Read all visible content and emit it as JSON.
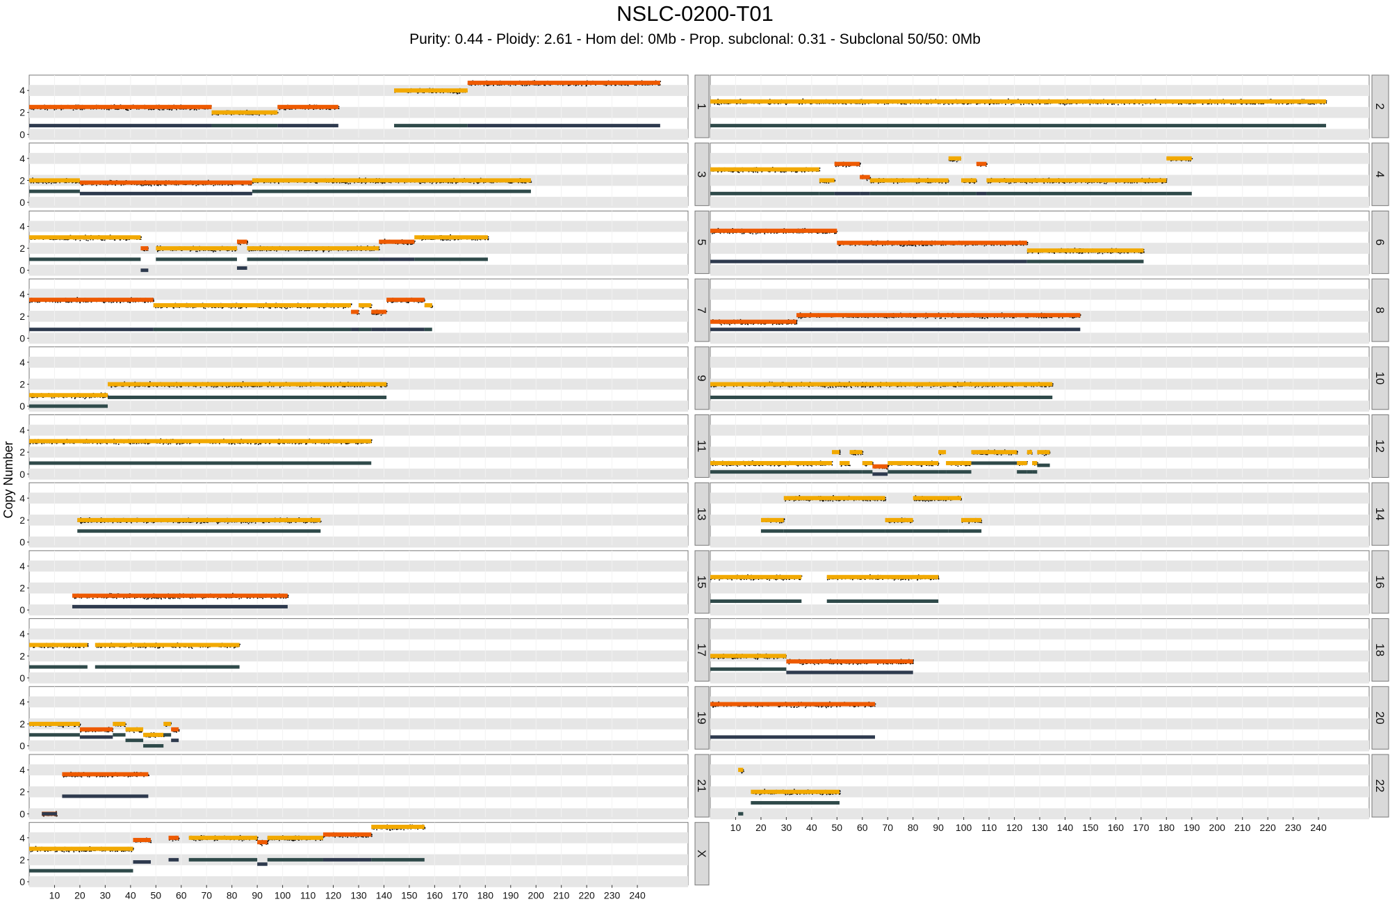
{
  "chart_data": {
    "type": "scatter",
    "title": "NSLC-0200-T01",
    "subtitle": "Purity: 0.44 - Ploidy: 2.61 - Hom del: 0Mb - Prop. subclonal: 0.31 - Subclonal 50/50: 0Mb",
    "ylabel": "Copy Number",
    "xlabel": "",
    "xlim": [
      0,
      260
    ],
    "ylim": [
      -0.3,
      5.4
    ],
    "x_ticks": [
      10,
      20,
      30,
      40,
      50,
      60,
      70,
      80,
      90,
      100,
      110,
      120,
      130,
      140,
      150,
      160,
      170,
      180,
      190,
      200,
      210,
      220,
      230,
      240
    ],
    "y_ticks": [
      0,
      2,
      4
    ],
    "grid": true,
    "colors": {
      "clonal": "#ee5a00",
      "subclonal": "#f2a900",
      "minor_clonal": "#2f4a4a",
      "minor_dark": "#2e3a4e",
      "points": "#000000",
      "strip": "#d9d9d9",
      "band": "#e6e6e6"
    },
    "panels": [
      {
        "chrom": "1",
        "col": 0,
        "row": 0,
        "length": 249,
        "segments": [
          {
            "start": 0,
            "end": 72,
            "total": 2.5,
            "minor": 0.8,
            "clonal": true
          },
          {
            "start": 72,
            "end": 98,
            "total": 2.0,
            "minor": 0.8,
            "clonal": false
          },
          {
            "start": 98,
            "end": 122,
            "total": 2.5,
            "minor": 0.8,
            "clonal": true
          },
          {
            "start": 144,
            "end": 173,
            "total": 4.0,
            "minor": 0.8,
            "clonal": false
          },
          {
            "start": 173,
            "end": 249,
            "total": 4.7,
            "minor": 0.8,
            "clonal": true
          }
        ]
      },
      {
        "chrom": "2",
        "col": 1,
        "row": 0,
        "length": 243,
        "segments": [
          {
            "start": 0,
            "end": 243,
            "total": 3.0,
            "minor": 0.8,
            "clonal": false
          }
        ]
      },
      {
        "chrom": "3",
        "col": 0,
        "row": 1,
        "length": 198,
        "segments": [
          {
            "start": 0,
            "end": 20,
            "total": 2.0,
            "minor": 1.0,
            "clonal": false
          },
          {
            "start": 20,
            "end": 88,
            "total": 1.8,
            "minor": 0.8,
            "clonal": true
          },
          {
            "start": 88,
            "end": 198,
            "total": 2.0,
            "minor": 1.0,
            "clonal": false
          }
        ]
      },
      {
        "chrom": "4",
        "col": 1,
        "row": 1,
        "length": 191,
        "segments": [
          {
            "start": 0,
            "end": 43,
            "total": 3.0,
            "minor": 0.8,
            "clonal": false
          },
          {
            "start": 43,
            "end": 49,
            "total": 2.0,
            "minor": 0.8,
            "clonal": false
          },
          {
            "start": 49,
            "end": 59,
            "total": 3.5,
            "minor": 0.8,
            "clonal": true
          },
          {
            "start": 59,
            "end": 63,
            "total": 2.3,
            "minor": 0.8,
            "clonal": true
          },
          {
            "start": 63,
            "end": 94,
            "total": 2.0,
            "minor": 0.8,
            "clonal": false
          },
          {
            "start": 94,
            "end": 99,
            "total": 4.0,
            "minor": 0.8,
            "clonal": false
          },
          {
            "start": 99,
            "end": 105,
            "total": 2.0,
            "minor": 0.8,
            "clonal": false
          },
          {
            "start": 105,
            "end": 109,
            "total": 3.5,
            "minor": 0.8,
            "clonal": true
          },
          {
            "start": 109,
            "end": 180,
            "total": 2.0,
            "minor": 0.8,
            "clonal": false
          },
          {
            "start": 180,
            "end": 190,
            "total": 4.0,
            "minor": 0.8,
            "clonal": false
          }
        ]
      },
      {
        "chrom": "5",
        "col": 0,
        "row": 2,
        "length": 181,
        "segments": [
          {
            "start": 0,
            "end": 44,
            "total": 3.0,
            "minor": 1.0,
            "clonal": false
          },
          {
            "start": 44,
            "end": 47,
            "total": 2.0,
            "minor": 0.0,
            "clonal": true
          },
          {
            "start": 50,
            "end": 82,
            "total": 2.0,
            "minor": 1.0,
            "clonal": false
          },
          {
            "start": 82,
            "end": 86,
            "total": 2.6,
            "minor": 0.2,
            "clonal": true
          },
          {
            "start": 86,
            "end": 138,
            "total": 2.0,
            "minor": 1.0,
            "clonal": false
          },
          {
            "start": 138,
            "end": 152,
            "total": 2.6,
            "minor": 1.0,
            "clonal": true
          },
          {
            "start": 152,
            "end": 181,
            "total": 3.0,
            "minor": 1.0,
            "clonal": false
          }
        ]
      },
      {
        "chrom": "6",
        "col": 1,
        "row": 2,
        "length": 171,
        "segments": [
          {
            "start": 0,
            "end": 50,
            "total": 3.6,
            "minor": 0.8,
            "clonal": true
          },
          {
            "start": 50,
            "end": 125,
            "total": 2.5,
            "minor": 0.8,
            "clonal": true
          },
          {
            "start": 125,
            "end": 171,
            "total": 1.8,
            "minor": 0.8,
            "clonal": false
          }
        ]
      },
      {
        "chrom": "7",
        "col": 0,
        "row": 3,
        "length": 159,
        "segments": [
          {
            "start": 0,
            "end": 49,
            "total": 3.5,
            "minor": 0.8,
            "clonal": true
          },
          {
            "start": 49,
            "end": 127,
            "total": 3.0,
            "minor": 0.8,
            "clonal": false
          },
          {
            "start": 127,
            "end": 130,
            "total": 2.4,
            "minor": 0.8,
            "clonal": true
          },
          {
            "start": 130,
            "end": 135,
            "total": 3.0,
            "minor": 0.8,
            "clonal": false
          },
          {
            "start": 135,
            "end": 141,
            "total": 2.4,
            "minor": 0.8,
            "clonal": true
          },
          {
            "start": 141,
            "end": 156,
            "total": 3.5,
            "minor": 0.8,
            "clonal": true
          },
          {
            "start": 156,
            "end": 159,
            "total": 3.0,
            "minor": 0.8,
            "clonal": false
          }
        ]
      },
      {
        "chrom": "8",
        "col": 1,
        "row": 3,
        "length": 146,
        "segments": [
          {
            "start": 0,
            "end": 34,
            "total": 1.5,
            "minor": 0.8,
            "clonal": true
          },
          {
            "start": 34,
            "end": 146,
            "total": 2.1,
            "minor": 0.8,
            "clonal": true
          }
        ]
      },
      {
        "chrom": "9",
        "col": 0,
        "row": 4,
        "length": 141,
        "segments": [
          {
            "start": 0,
            "end": 31,
            "total": 1.0,
            "minor": 0.0,
            "clonal": false
          },
          {
            "start": 31,
            "end": 141,
            "total": 2.0,
            "minor": 0.8,
            "clonal": false
          }
        ]
      },
      {
        "chrom": "10",
        "col": 1,
        "row": 4,
        "length": 135,
        "segments": [
          {
            "start": 0,
            "end": 135,
            "total": 2.0,
            "minor": 0.8,
            "clonal": false
          }
        ]
      },
      {
        "chrom": "11",
        "col": 0,
        "row": 5,
        "length": 135,
        "segments": [
          {
            "start": 0,
            "end": 135,
            "total": 3.0,
            "minor": 1.0,
            "clonal": false
          }
        ]
      },
      {
        "chrom": "12",
        "col": 1,
        "row": 5,
        "length": 134,
        "segments": [
          {
            "start": 0,
            "end": 48,
            "total": 1.0,
            "minor": 0.2,
            "clonal": false
          },
          {
            "start": 48,
            "end": 51,
            "total": 2.0,
            "minor": 0.2,
            "clonal": false
          },
          {
            "start": 51,
            "end": 55,
            "total": 1.0,
            "minor": 0.2,
            "clonal": false
          },
          {
            "start": 55,
            "end": 60,
            "total": 2.0,
            "minor": 0.2,
            "clonal": false
          },
          {
            "start": 60,
            "end": 64,
            "total": 1.0,
            "minor": 0.2,
            "clonal": false
          },
          {
            "start": 64,
            "end": 70,
            "total": 0.7,
            "minor": 0.0,
            "clonal": true
          },
          {
            "start": 70,
            "end": 90,
            "total": 1.0,
            "minor": 0.2,
            "clonal": false
          },
          {
            "start": 90,
            "end": 93,
            "total": 2.0,
            "minor": 0.2,
            "clonal": false
          },
          {
            "start": 93,
            "end": 103,
            "total": 1.0,
            "minor": 0.2,
            "clonal": false
          },
          {
            "start": 103,
            "end": 121,
            "total": 2.0,
            "minor": 1.0,
            "clonal": false
          },
          {
            "start": 121,
            "end": 125,
            "total": 1.0,
            "minor": 0.2,
            "clonal": false
          },
          {
            "start": 125,
            "end": 127,
            "total": 2.0,
            "minor": 0.2,
            "clonal": false
          },
          {
            "start": 127,
            "end": 129,
            "total": 1.0,
            "minor": 0.2,
            "clonal": false
          },
          {
            "start": 129,
            "end": 134,
            "total": 2.0,
            "minor": 0.8,
            "clonal": false
          }
        ]
      },
      {
        "chrom": "13",
        "col": 0,
        "row": 6,
        "length": 115,
        "segments": [
          {
            "start": 19,
            "end": 115,
            "total": 2.0,
            "minor": 1.0,
            "clonal": false
          }
        ]
      },
      {
        "chrom": "14",
        "col": 1,
        "row": 6,
        "length": 107,
        "segments": [
          {
            "start": 20,
            "end": 29,
            "total": 2.0,
            "minor": 1.0,
            "clonal": false
          },
          {
            "start": 29,
            "end": 69,
            "total": 4.0,
            "minor": 1.0,
            "clonal": false
          },
          {
            "start": 69,
            "end": 80,
            "total": 2.0,
            "minor": 1.0,
            "clonal": false
          },
          {
            "start": 80,
            "end": 94,
            "total": 4.0,
            "minor": 1.0,
            "clonal": false
          },
          {
            "start": 94,
            "end": 99,
            "total": 4.0,
            "minor": 1.0,
            "clonal": false
          },
          {
            "start": 99,
            "end": 107,
            "total": 2.0,
            "minor": 1.0,
            "clonal": false
          }
        ]
      },
      {
        "chrom": "15",
        "col": 0,
        "row": 7,
        "length": 102,
        "segments": [
          {
            "start": 17,
            "end": 102,
            "total": 1.3,
            "minor": 0.3,
            "clonal": true
          }
        ]
      },
      {
        "chrom": "16",
        "col": 1,
        "row": 7,
        "length": 90,
        "segments": [
          {
            "start": 0,
            "end": 36,
            "total": 3.0,
            "minor": 0.8,
            "clonal": false
          },
          {
            "start": 46,
            "end": 90,
            "total": 3.0,
            "minor": 0.8,
            "clonal": false
          }
        ]
      },
      {
        "chrom": "17",
        "col": 0,
        "row": 8,
        "length": 83,
        "segments": [
          {
            "start": 0,
            "end": 23,
            "total": 3.0,
            "minor": 1.0,
            "clonal": false
          },
          {
            "start": 26,
            "end": 83,
            "total": 3.0,
            "minor": 1.0,
            "clonal": false
          }
        ]
      },
      {
        "chrom": "18",
        "col": 1,
        "row": 8,
        "length": 80,
        "segments": [
          {
            "start": 0,
            "end": 30,
            "total": 2.0,
            "minor": 0.8,
            "clonal": false
          },
          {
            "start": 30,
            "end": 80,
            "total": 1.5,
            "minor": 0.5,
            "clonal": true
          }
        ]
      },
      {
        "chrom": "19",
        "col": 0,
        "row": 9,
        "length": 59,
        "segments": [
          {
            "start": 0,
            "end": 20,
            "total": 2.0,
            "minor": 1.0,
            "clonal": false
          },
          {
            "start": 20,
            "end": 33,
            "total": 1.5,
            "minor": 0.8,
            "clonal": true
          },
          {
            "start": 33,
            "end": 38,
            "total": 2.0,
            "minor": 1.0,
            "clonal": false
          },
          {
            "start": 38,
            "end": 45,
            "total": 1.5,
            "minor": 0.5,
            "clonal": false
          },
          {
            "start": 45,
            "end": 53,
            "total": 1.0,
            "minor": 0.0,
            "clonal": false
          },
          {
            "start": 53,
            "end": 56,
            "total": 2.0,
            "minor": 1.0,
            "clonal": false
          },
          {
            "start": 56,
            "end": 59,
            "total": 1.5,
            "minor": 0.5,
            "clonal": true
          }
        ]
      },
      {
        "chrom": "20",
        "col": 1,
        "row": 9,
        "length": 65,
        "segments": [
          {
            "start": 0,
            "end": 65,
            "total": 3.8,
            "minor": 0.8,
            "clonal": true
          }
        ]
      },
      {
        "chrom": "21",
        "col": 0,
        "row": 10,
        "length": 47,
        "segments": [
          {
            "start": 5,
            "end": 11,
            "total": 0.0,
            "minor": 0.0,
            "clonal": true
          },
          {
            "start": 13,
            "end": 47,
            "total": 3.6,
            "minor": 1.6,
            "clonal": true
          }
        ]
      },
      {
        "chrom": "22",
        "col": 1,
        "row": 10,
        "length": 51,
        "segments": [
          {
            "start": 11,
            "end": 13,
            "total": 4.0,
            "minor": 0.0,
            "clonal": false
          },
          {
            "start": 16,
            "end": 51,
            "total": 2.0,
            "minor": 1.0,
            "clonal": false
          }
        ]
      },
      {
        "chrom": "X",
        "col": 0,
        "row": 11,
        "length": 156,
        "segments": [
          {
            "start": 0,
            "end": 41,
            "total": 3.0,
            "minor": 1.0,
            "clonal": false
          },
          {
            "start": 41,
            "end": 48,
            "total": 3.8,
            "minor": 1.8,
            "clonal": true
          },
          {
            "start": 55,
            "end": 59,
            "total": 4.0,
            "minor": 2.0,
            "clonal": true
          },
          {
            "start": 63,
            "end": 90,
            "total": 4.0,
            "minor": 2.0,
            "clonal": false
          },
          {
            "start": 90,
            "end": 94,
            "total": 3.6,
            "minor": 1.6,
            "clonal": true
          },
          {
            "start": 94,
            "end": 116,
            "total": 4.0,
            "minor": 2.0,
            "clonal": false
          },
          {
            "start": 116,
            "end": 135,
            "total": 4.3,
            "minor": 2.0,
            "clonal": true
          },
          {
            "start": 135,
            "end": 156,
            "total": 5.0,
            "minor": 2.0,
            "clonal": false
          }
        ]
      }
    ]
  }
}
